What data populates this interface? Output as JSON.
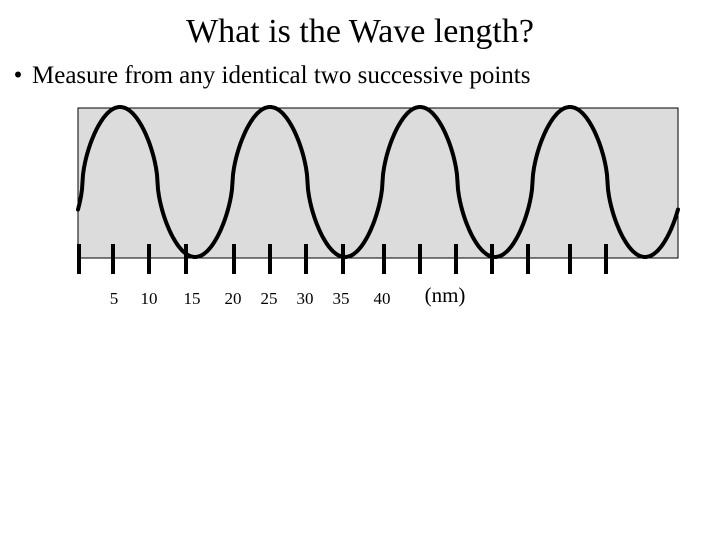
{
  "slide": {
    "title": "What is the Wave length?",
    "bullet": "Measure from any identical two successive points"
  },
  "diagram": {
    "ruler_labels": [
      "5",
      "10",
      "15",
      "20",
      "25",
      "30",
      "35",
      "40"
    ],
    "unit_label": "(nm)",
    "colors": {
      "panel_fill": "#dcdcdc",
      "wave_stroke": "#000000",
      "tick_stroke": "#000000"
    }
  }
}
